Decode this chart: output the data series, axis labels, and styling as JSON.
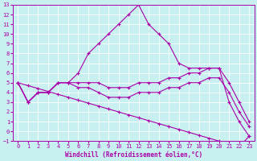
{
  "xlabel": "Windchill (Refroidissement éolien,°C)",
  "bg_color": "#c8f0f0",
  "line_color": "#aa00aa",
  "grid_color": "#ffffff",
  "xlim": [
    -0.5,
    23.5
  ],
  "ylim": [
    -1,
    13
  ],
  "xticks": [
    0,
    1,
    2,
    3,
    4,
    5,
    6,
    7,
    8,
    9,
    10,
    11,
    12,
    13,
    14,
    15,
    16,
    17,
    18,
    19,
    20,
    21,
    22,
    23
  ],
  "yticks": [
    -1,
    0,
    1,
    2,
    3,
    4,
    5,
    6,
    7,
    8,
    9,
    10,
    11,
    12,
    13
  ],
  "lines": [
    {
      "x": [
        0,
        1,
        2,
        3,
        4,
        5,
        6,
        7,
        8,
        9,
        10,
        11,
        12,
        13,
        14,
        15,
        16,
        17,
        18,
        19,
        20,
        21,
        22,
        23
      ],
      "y": [
        5,
        3,
        4,
        4,
        5,
        5,
        6,
        8,
        9,
        10,
        11,
        12,
        13,
        11,
        10,
        9,
        7,
        6.5,
        6.5,
        6.5,
        6.5,
        3,
        1,
        -0.5
      ]
    },
    {
      "x": [
        0,
        1,
        2,
        3,
        4,
        5,
        6,
        7,
        8,
        9,
        10,
        11,
        12,
        13,
        14,
        15,
        16,
        17,
        18,
        19,
        20,
        21,
        22,
        23
      ],
      "y": [
        5,
        3,
        4,
        4,
        5,
        5,
        5,
        5,
        5,
        4.5,
        4.5,
        4.5,
        5,
        5,
        5,
        5.5,
        5.5,
        6,
        6,
        6.5,
        6.5,
        5,
        3,
        1
      ]
    },
    {
      "x": [
        0,
        1,
        2,
        3,
        4,
        5,
        6,
        7,
        8,
        9,
        10,
        11,
        12,
        13,
        14,
        15,
        16,
        17,
        18,
        19,
        20,
        21,
        22,
        23
      ],
      "y": [
        5,
        3,
        4,
        4,
        5,
        5,
        4.5,
        4.5,
        4,
        3.5,
        3.5,
        3.5,
        4,
        4,
        4,
        4.5,
        4.5,
        5,
        5,
        5.5,
        5.5,
        4,
        2,
        0.5
      ]
    },
    {
      "x": [
        0,
        1,
        2,
        3,
        4,
        5,
        6,
        7,
        8,
        9,
        10,
        11,
        12,
        13,
        14,
        15,
        16,
        17,
        18,
        19,
        20,
        21,
        22,
        23
      ],
      "y": [
        5,
        4.7,
        4.4,
        4.1,
        3.8,
        3.5,
        3.2,
        2.9,
        2.6,
        2.3,
        2.0,
        1.7,
        1.4,
        1.1,
        0.8,
        0.5,
        0.2,
        -0.1,
        -0.4,
        -0.7,
        -1.0,
        -1.3,
        -1.6,
        -0.5
      ]
    }
  ]
}
